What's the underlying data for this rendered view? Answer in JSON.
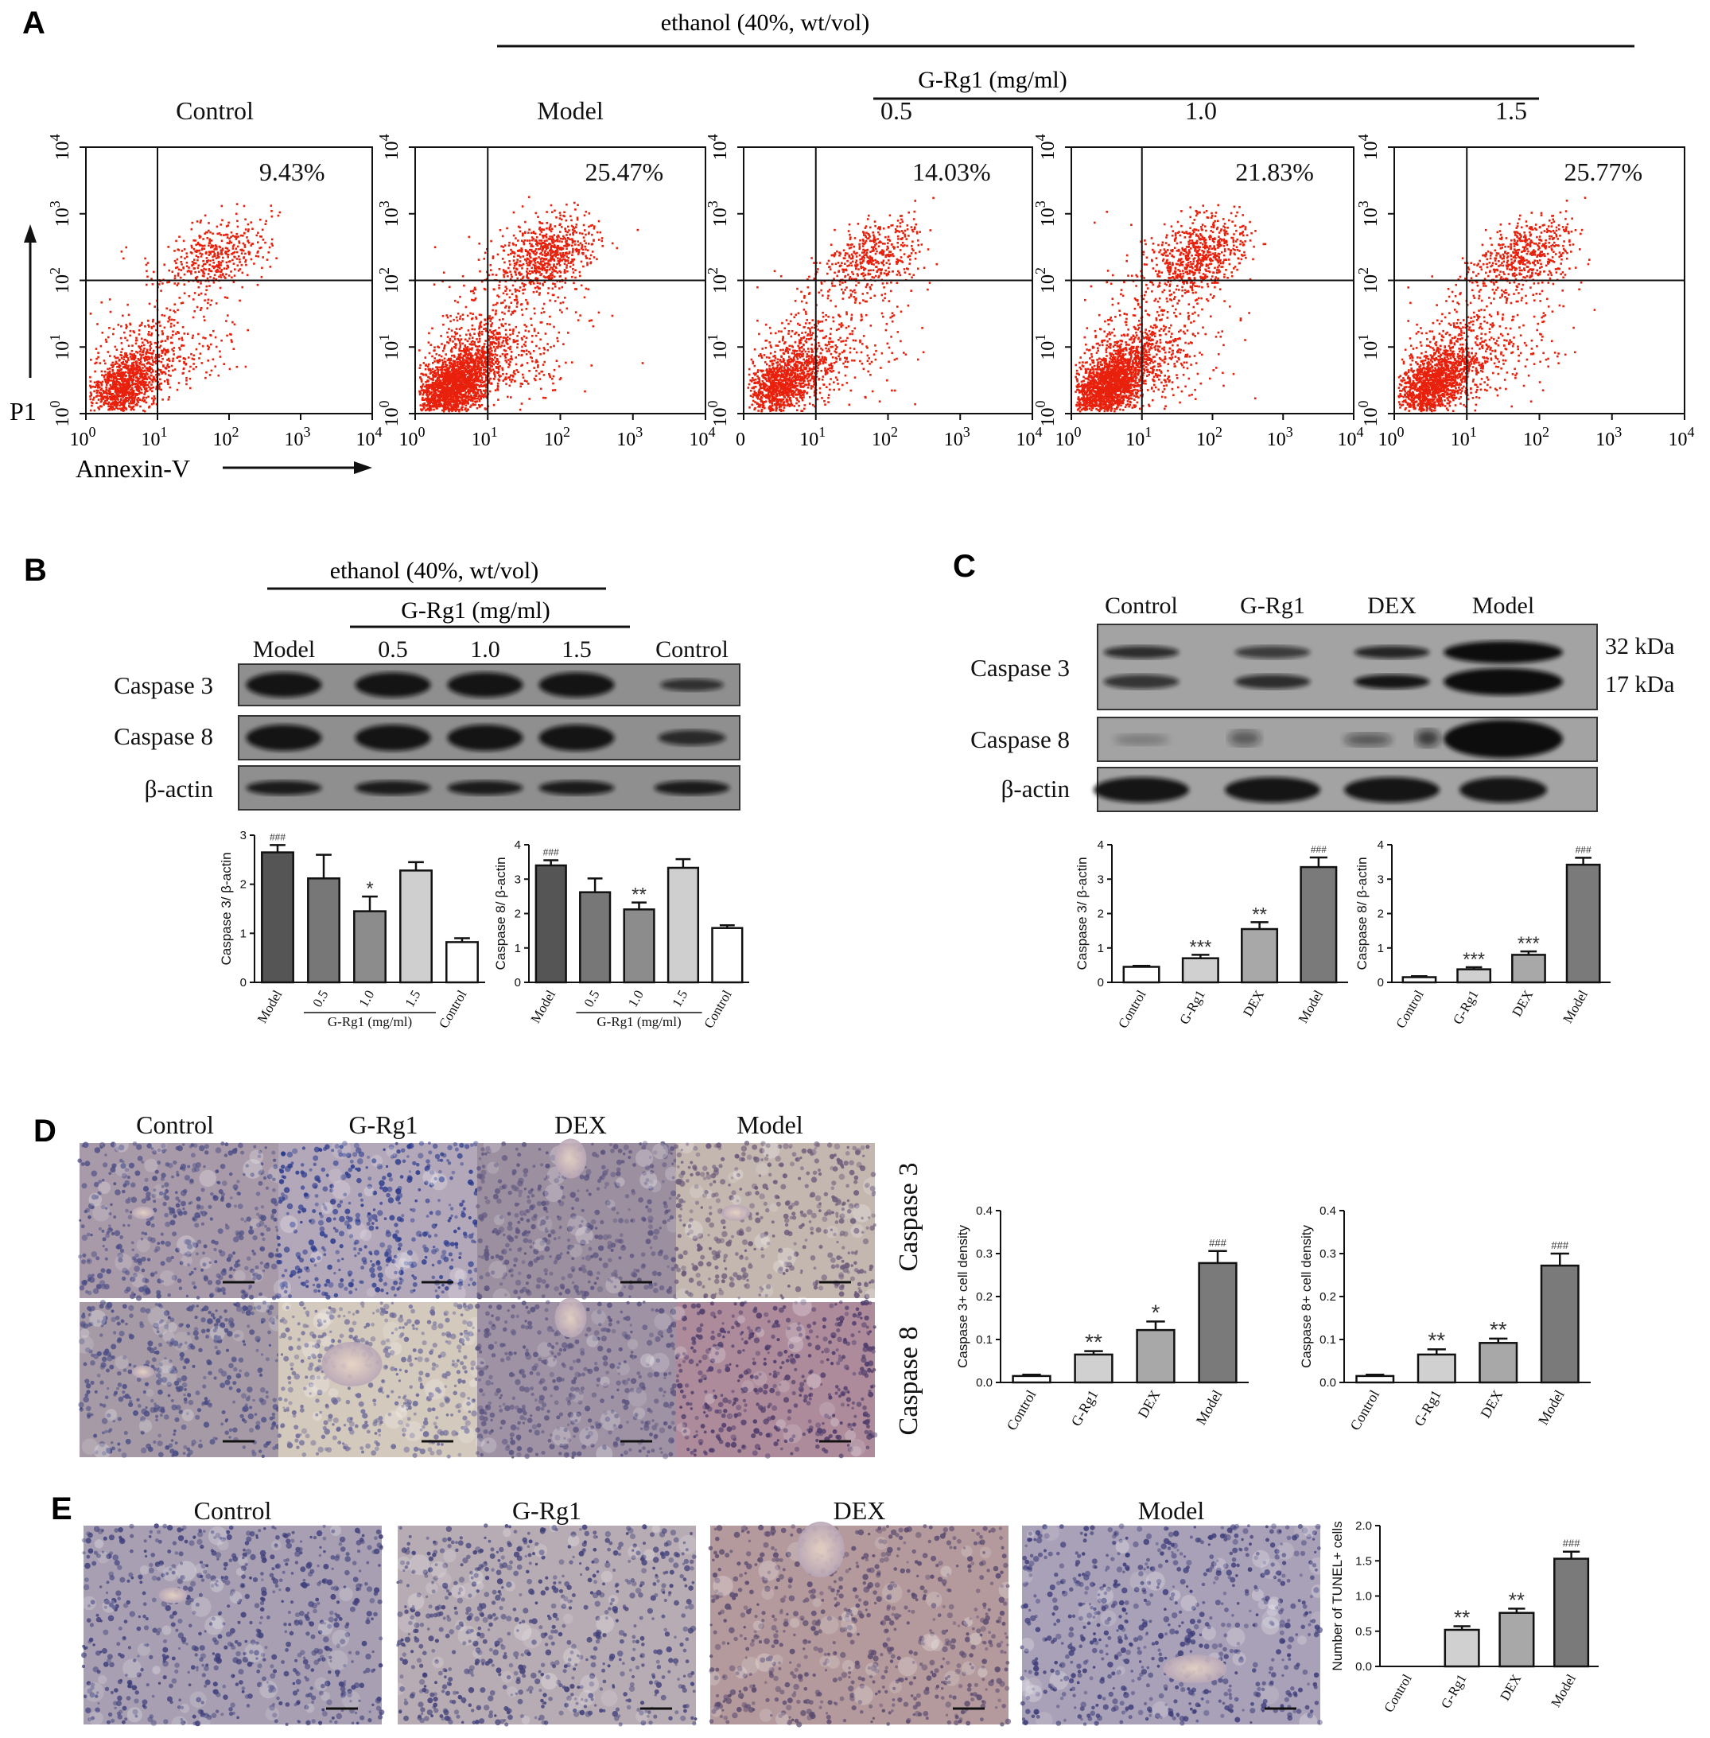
{
  "panelA": {
    "letter": "A",
    "ethanol_label": "ethanol (40%, wt/vol)",
    "grg1_label": "G-Rg1 (mg/ml)",
    "plots": [
      {
        "title": "Control",
        "percent": "9.43%"
      },
      {
        "title": "Model",
        "percent": "25.47%"
      },
      {
        "title": "0.5",
        "percent": "14.03%"
      },
      {
        "title": "1.0",
        "percent": "21.83%"
      },
      {
        "title": "1.5",
        "percent": "25.77%"
      }
    ],
    "y_axis_label": "P1",
    "x_axis_label": "Annexin-V",
    "tick_base": "10",
    "tick_exponents": [
      "0",
      "1",
      "2",
      "3",
      "4"
    ],
    "alt_first_x_tick": "0",
    "dot_color": "#e8210c"
  },
  "panelB": {
    "letter": "B",
    "ethanol_label": "ethanol (40%, wt/vol)",
    "grg1_label": "G-Rg1 (mg/ml)",
    "lanes": [
      "Model",
      "0.5",
      "1.0",
      "1.5",
      "Control"
    ],
    "rows": [
      "Caspase 3",
      "Caspase 8",
      "β-actin"
    ],
    "charts": [
      {
        "ylabel": "Caspase 3/ β-actin",
        "group_label": "G-Rg1 (mg/ml)"
      },
      {
        "ylabel": "Caspase 8/ β-actin",
        "group_label": "G-Rg1 (mg/ml)"
      }
    ]
  },
  "panelC": {
    "letter": "C",
    "lanes": [
      "Control",
      "G-Rg1",
      "DEX",
      "Model"
    ],
    "rows": [
      "Caspase 3",
      "Caspase 8",
      "β-actin"
    ],
    "mw": [
      "32 kDa",
      "17 kDa"
    ],
    "charts": [
      {
        "ylabel": "Caspase 3/ β-actin"
      },
      {
        "ylabel": "Caspase 8/ β-actin"
      }
    ]
  },
  "panelD": {
    "letter": "D",
    "columns": [
      "Control",
      "G-Rg1",
      "DEX",
      "Model"
    ],
    "rows": [
      "Caspase 3",
      "Caspase 8"
    ],
    "charts": [
      {
        "ylabel": "Caspase 3+ cell density"
      },
      {
        "ylabel": "Caspase 8+ cell density"
      }
    ]
  },
  "panelE": {
    "letter": "E",
    "columns": [
      "Control",
      "G-Rg1",
      "DEX",
      "Model"
    ],
    "chart": {
      "ylabel": "Number of TUNEL+ cells"
    }
  },
  "chart_data": [
    {
      "type": "bar",
      "id": "B1",
      "categories": [
        "Model",
        "0.5",
        "1.0",
        "1.5",
        "Control"
      ],
      "values": [
        2.65,
        2.12,
        1.45,
        2.28,
        0.82
      ],
      "errors": [
        0.15,
        0.48,
        0.3,
        0.17,
        0.08
      ],
      "annotations": [
        "###",
        "",
        "*",
        "",
        ""
      ],
      "ylabel": "Caspase 3/ β-actin",
      "ylim": [
        0,
        3
      ],
      "yticks": [
        0,
        1,
        2,
        3
      ],
      "bar_colors": [
        "#555555",
        "#777777",
        "#8c8c8c",
        "#cfcfcf",
        "#ffffff"
      ]
    },
    {
      "type": "bar",
      "id": "B2",
      "categories": [
        "Model",
        "0.5",
        "1.0",
        "1.5",
        "Control"
      ],
      "values": [
        3.4,
        2.62,
        2.12,
        3.33,
        1.58
      ],
      "errors": [
        0.15,
        0.4,
        0.2,
        0.25,
        0.08
      ],
      "annotations": [
        "###",
        "",
        "**",
        "",
        ""
      ],
      "ylabel": "Caspase 8/ β-actin",
      "ylim": [
        0,
        4
      ],
      "yticks": [
        0,
        1,
        2,
        3,
        4
      ],
      "bar_colors": [
        "#555555",
        "#777777",
        "#8c8c8c",
        "#cfcfcf",
        "#ffffff"
      ]
    },
    {
      "type": "bar",
      "id": "C1",
      "categories": [
        "Control",
        "G-Rg1",
        "DEX",
        "Model"
      ],
      "values": [
        0.45,
        0.7,
        1.55,
        3.35
      ],
      "errors": [
        0.03,
        0.1,
        0.2,
        0.28
      ],
      "annotations": [
        "",
        "***",
        "**",
        "###"
      ],
      "ylabel": "Caspase 3/ β-actin",
      "ylim": [
        0,
        4
      ],
      "yticks": [
        0,
        1,
        2,
        3,
        4
      ],
      "bar_colors": [
        "#ffffff",
        "#d0d0d0",
        "#a8a8a8",
        "#7a7a7a"
      ]
    },
    {
      "type": "bar",
      "id": "C2",
      "categories": [
        "Control",
        "G-Rg1",
        "DEX",
        "Model"
      ],
      "values": [
        0.15,
        0.38,
        0.8,
        3.42
      ],
      "errors": [
        0.03,
        0.06,
        0.1,
        0.2
      ],
      "annotations": [
        "",
        "***",
        "***",
        "###"
      ],
      "ylabel": "Caspase 8/ β-actin",
      "ylim": [
        0,
        4
      ],
      "yticks": [
        0,
        1,
        2,
        3,
        4
      ],
      "bar_colors": [
        "#ffffff",
        "#d0d0d0",
        "#a8a8a8",
        "#7a7a7a"
      ]
    },
    {
      "type": "bar",
      "id": "D1",
      "categories": [
        "Control",
        "G-Rg1",
        "DEX",
        "Model"
      ],
      "values": [
        0.015,
        0.065,
        0.122,
        0.278
      ],
      "errors": [
        0.003,
        0.008,
        0.02,
        0.028
      ],
      "annotations": [
        "",
        "**",
        "*",
        "###"
      ],
      "ylabel": "Caspase 3+ cell density",
      "ylim": [
        0,
        0.4
      ],
      "yticks": [
        0.0,
        0.1,
        0.2,
        0.3,
        0.4
      ],
      "bar_colors": [
        "#ffffff",
        "#d0d0d0",
        "#a8a8a8",
        "#7a7a7a"
      ]
    },
    {
      "type": "bar",
      "id": "D2",
      "categories": [
        "Control",
        "G-Rg1",
        "DEX",
        "Model"
      ],
      "values": [
        0.015,
        0.065,
        0.092,
        0.272
      ],
      "errors": [
        0.003,
        0.012,
        0.01,
        0.028
      ],
      "annotations": [
        "",
        "**",
        "**",
        "###"
      ],
      "ylabel": "Caspase 8+ cell density",
      "ylim": [
        0,
        0.4
      ],
      "yticks": [
        0.0,
        0.1,
        0.2,
        0.3,
        0.4
      ],
      "bar_colors": [
        "#ffffff",
        "#d0d0d0",
        "#a8a8a8",
        "#7a7a7a"
      ]
    },
    {
      "type": "bar",
      "id": "E1",
      "categories": [
        "Control",
        "G-Rg1",
        "DEX",
        "Model"
      ],
      "values": [
        0.0,
        0.52,
        0.76,
        1.53
      ],
      "errors": [
        0.0,
        0.05,
        0.06,
        0.1
      ],
      "annotations": [
        "",
        "**",
        "**",
        "###"
      ],
      "ylabel": "Number of TUNEL+ cells",
      "ylim": [
        0,
        2.0
      ],
      "yticks": [
        0.0,
        0.5,
        1.0,
        1.5,
        2.0
      ],
      "bar_colors": [
        "#ffffff",
        "#d0d0d0",
        "#a8a8a8",
        "#7a7a7a"
      ]
    }
  ]
}
